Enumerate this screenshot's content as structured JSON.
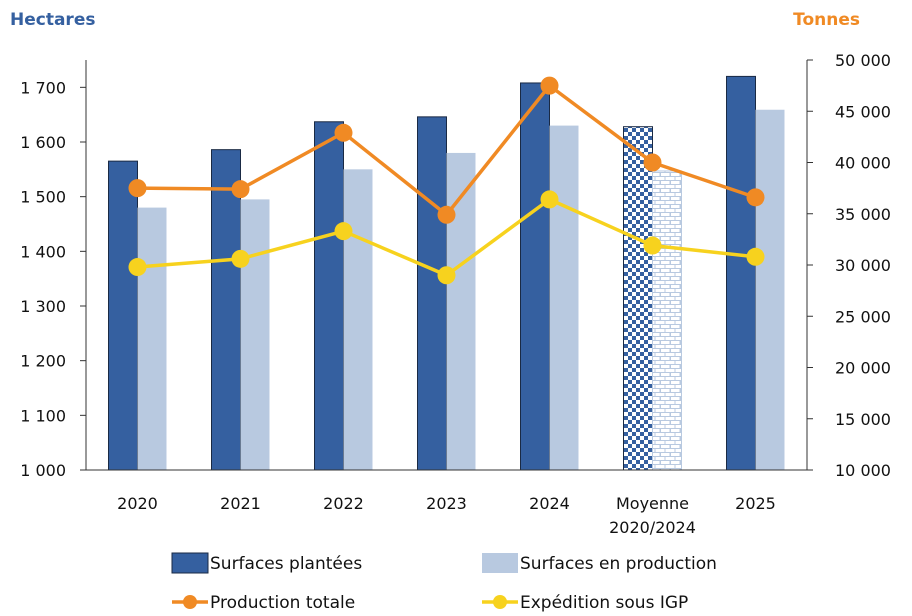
{
  "chart_data": {
    "type": "bar",
    "title": "",
    "left_axis_unit": "Hectares",
    "right_axis_unit": "Tonnes",
    "categories": [
      [
        "2020"
      ],
      [
        "2021"
      ],
      [
        "2022"
      ],
      [
        "2023"
      ],
      [
        "2024"
      ],
      [
        "Moyenne",
        "2020/2024"
      ],
      [
        "2025"
      ]
    ],
    "ylim_left": [
      1000,
      1750
    ],
    "yticks_left": [
      1000,
      1100,
      1200,
      1300,
      1400,
      1500,
      1600,
      1700
    ],
    "ytick_labels_left": [
      "1 000",
      "1 100",
      "1 200",
      "1 300",
      "1 400",
      "1 500",
      "1 600",
      "1 700"
    ],
    "ylim_right": [
      10000,
      50000
    ],
    "yticks_right": [
      10000,
      15000,
      20000,
      25000,
      30000,
      35000,
      40000,
      45000,
      50000
    ],
    "ytick_labels_right": [
      "10 000",
      "15 000",
      "20 000",
      "25 000",
      "30 000",
      "35 000",
      "40 000",
      "45 000",
      "50 000"
    ],
    "series": [
      {
        "name": "Surfaces plantées",
        "type": "bar",
        "axis": "left",
        "color": "#3560a0",
        "values": [
          1565,
          1586,
          1637,
          1646,
          1708,
          1628,
          1720
        ]
      },
      {
        "name": "Surfaces en production",
        "type": "bar",
        "axis": "left",
        "color": "#b8c9e0",
        "values": [
          1480,
          1495,
          1550,
          1580,
          1630,
          1547,
          1659
        ]
      },
      {
        "name": "Production totale",
        "type": "line",
        "axis": "right",
        "color": "#f08a24",
        "values": [
          37500,
          37400,
          42900,
          34900,
          47500,
          40000,
          36600
        ]
      },
      {
        "name": "Expédition sous IGP",
        "type": "line",
        "axis": "right",
        "color": "#f7d21e",
        "values": [
          29800,
          30600,
          33300,
          29000,
          36400,
          31900,
          30800
        ]
      }
    ],
    "highlight_category_index": 5,
    "grid": false,
    "legend_position": "bottom"
  }
}
